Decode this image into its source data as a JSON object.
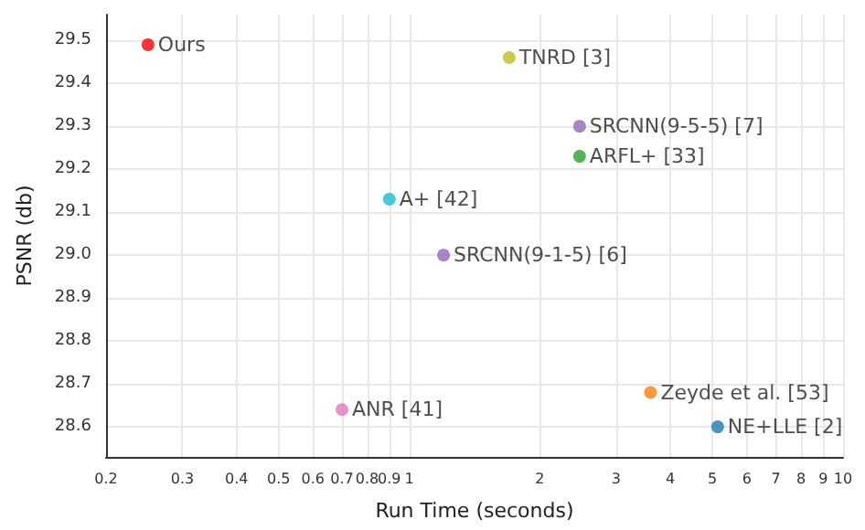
{
  "chart_data": {
    "type": "scatter",
    "xlabel": "Run Time (seconds)",
    "ylabel": "PSNR (db)",
    "log": "x",
    "grid": true,
    "marker": "circle",
    "xlim": [
      0.2,
      10
    ],
    "xticks": [
      0.2,
      0.3,
      0.4,
      0.5,
      0.6,
      0.7,
      0.8,
      0.9,
      1,
      2,
      3,
      4,
      5,
      6,
      7,
      8,
      9,
      10
    ],
    "ylim": [
      28.53,
      29.56
    ],
    "yticks": [
      28.6,
      28.7,
      28.8,
      28.9,
      {
        "value": 29,
        "label": "29.0"
      },
      29.1,
      29.2,
      29.3,
      29.4,
      29.5
    ],
    "series": [
      {
        "name": "Ours",
        "color": "#ff0000",
        "x": [
          0.25
        ],
        "values": [
          29.49
        ]
      },
      {
        "name": "TNRD [3]",
        "color": "#bcbd22",
        "x": [
          1.7
        ],
        "values": [
          29.46
        ]
      },
      {
        "name": "SRCNN(9-5-5) [7]",
        "color": "#9467bd",
        "x": [
          2.47
        ],
        "values": [
          29.3
        ]
      },
      {
        "name": "ARFL+ [33]",
        "color": "#2ca02c",
        "x": [
          2.47
        ],
        "values": [
          29.23
        ]
      },
      {
        "name": "A+ [42]",
        "color": "#17becf",
        "x": [
          0.9
        ],
        "values": [
          29.13
        ]
      },
      {
        "name": "SRCNN(9-1-5) [6]",
        "color": "#9467bd",
        "x": [
          1.2
        ],
        "values": [
          29.0
        ]
      },
      {
        "name": "ANR [41]",
        "color": "#e377c2",
        "x": [
          0.7
        ],
        "values": [
          28.64
        ]
      },
      {
        "name": "Zeyde et al. [53]",
        "color": "#ff7f0e",
        "x": [
          3.6
        ],
        "values": [
          28.68
        ]
      },
      {
        "name": "NE+LLE [2]",
        "color": "#1f77b4",
        "x": [
          5.14
        ],
        "values": [
          28.6
        ]
      }
    ]
  }
}
